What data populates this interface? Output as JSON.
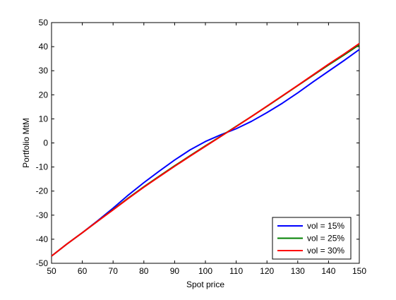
{
  "chart_data": {
    "type": "line",
    "title": "",
    "xlabel": "Spot price",
    "ylabel": "Portfolio MtM",
    "xlim": [
      50,
      150
    ],
    "ylim": [
      -50,
      50
    ],
    "xticks": [
      50,
      60,
      70,
      80,
      90,
      100,
      110,
      120,
      130,
      140,
      150
    ],
    "yticks": [
      -50,
      -40,
      -30,
      -20,
      -10,
      0,
      10,
      20,
      30,
      40,
      50
    ],
    "grid": false,
    "legend_position": "bottom-right",
    "x": [
      50,
      55,
      60,
      65,
      70,
      75,
      80,
      85,
      90,
      95,
      100,
      105,
      110,
      115,
      120,
      125,
      130,
      135,
      140,
      145,
      150
    ],
    "series": [
      {
        "name": "vol = 15%",
        "color": "#0000ff",
        "values": [
          -47,
          -42,
          -37.3,
          -32.3,
          -27.1,
          -21.6,
          -16.5,
          -11.7,
          -7.1,
          -2.9,
          0.6,
          3.4,
          5.9,
          9.0,
          12.6,
          16.5,
          20.8,
          25.4,
          29.8,
          34.2,
          38.8
        ]
      },
      {
        "name": "vol = 25%",
        "color": "#008000",
        "values": [
          -47,
          -42,
          -37.3,
          -32.5,
          -27.7,
          -22.8,
          -18.2,
          -13.8,
          -9.5,
          -5.3,
          -1.2,
          2.8,
          6.9,
          11.0,
          15.2,
          19.5,
          23.8,
          28.1,
          32.4,
          36.5,
          40.8
        ]
      },
      {
        "name": "vol = 30%",
        "color": "#ff0000",
        "values": [
          -47,
          -42,
          -37.3,
          -32.5,
          -27.8,
          -23.0,
          -18.4,
          -14.0,
          -9.7,
          -5.5,
          -1.4,
          2.7,
          6.8,
          11.0,
          15.3,
          19.6,
          23.9,
          28.3,
          32.7,
          36.9,
          41.3
        ]
      }
    ]
  }
}
